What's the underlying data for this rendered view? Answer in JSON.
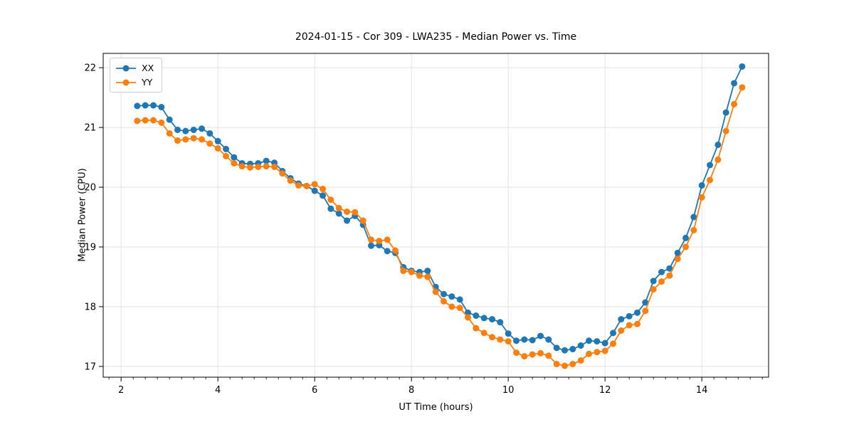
{
  "figure": {
    "title": "2024-01-15 - Cor 309 - LWA235 - Median Power vs. Time",
    "background_color": "#ffffff"
  },
  "chart_data": {
    "type": "line",
    "title": "2024-01-15 - Cor 309 - LWA235 - Median Power vs. Time",
    "xlabel": "UT Time (hours)",
    "ylabel": "Median Power (CPU)",
    "xlim": [
      1.63,
      15.38
    ],
    "ylim": [
      16.82,
      22.24
    ],
    "xticks": [
      2,
      4,
      6,
      8,
      10,
      12,
      14
    ],
    "yticks": [
      17,
      18,
      19,
      20,
      21,
      22
    ],
    "minor_xtick_step": 0.25,
    "grid": true,
    "grid_color": "#e2e2e2",
    "legend_position": "upper left",
    "marker": "circle",
    "x": [
      2.333,
      2.5,
      2.667,
      2.833,
      3,
      3.167,
      3.333,
      3.5,
      3.667,
      3.833,
      4,
      4.167,
      4.333,
      4.5,
      4.667,
      4.833,
      5,
      5.167,
      5.333,
      5.5,
      5.667,
      5.833,
      6,
      6.167,
      6.333,
      6.5,
      6.667,
      6.833,
      7,
      7.167,
      7.333,
      7.5,
      7.667,
      7.833,
      8,
      8.167,
      8.333,
      8.5,
      8.667,
      8.833,
      9,
      9.167,
      9.333,
      9.5,
      9.667,
      9.833,
      10,
      10.167,
      10.333,
      10.5,
      10.667,
      10.833,
      11,
      11.167,
      11.333,
      11.5,
      11.667,
      11.833,
      12,
      12.167,
      12.333,
      12.5,
      12.667,
      12.833,
      13,
      13.167,
      13.333,
      13.5,
      13.667,
      13.833,
      14,
      14.167,
      14.333,
      14.5,
      14.667,
      14.833
    ],
    "series": [
      {
        "name": "XX",
        "color": "#1f77b4",
        "values": [
          21.36,
          21.37,
          21.37,
          21.34,
          21.13,
          20.96,
          20.94,
          20.96,
          20.98,
          20.9,
          20.77,
          20.64,
          20.5,
          20.4,
          20.39,
          20.4,
          20.44,
          20.41,
          20.27,
          20.15,
          20.06,
          20.02,
          19.94,
          19.86,
          19.64,
          19.56,
          19.44,
          19.52,
          19.37,
          19.02,
          19.03,
          18.93,
          18.9,
          18.66,
          18.6,
          18.58,
          18.6,
          18.33,
          18.21,
          18.17,
          18.12,
          17.9,
          17.85,
          17.81,
          17.79,
          17.74,
          17.55,
          17.43,
          17.45,
          17.44,
          17.51,
          17.45,
          17.31,
          17.27,
          17.29,
          17.35,
          17.43,
          17.42,
          17.39,
          17.56,
          17.79,
          17.84,
          17.9,
          18.07,
          18.43,
          18.58,
          18.64,
          18.9,
          19.15,
          19.5,
          20.03,
          20.37,
          20.71,
          21.25,
          21.74,
          22.02
        ]
      },
      {
        "name": "YY",
        "color": "#ff7f0e",
        "values": [
          21.11,
          21.12,
          21.12,
          21.08,
          20.9,
          20.78,
          20.8,
          20.82,
          20.8,
          20.73,
          20.65,
          20.52,
          20.4,
          20.35,
          20.33,
          20.34,
          20.35,
          20.34,
          20.23,
          20.11,
          20.03,
          20.02,
          20.05,
          19.97,
          19.79,
          19.65,
          19.59,
          19.58,
          19.44,
          19.12,
          19.1,
          19.12,
          18.94,
          18.6,
          18.58,
          18.52,
          18.5,
          18.25,
          18.09,
          18.0,
          17.98,
          17.82,
          17.64,
          17.56,
          17.49,
          17.45,
          17.42,
          17.23,
          17.17,
          17.2,
          17.22,
          17.18,
          17.04,
          17.01,
          17.04,
          17.1,
          17.21,
          17.24,
          17.26,
          17.38,
          17.6,
          17.69,
          17.71,
          17.93,
          18.29,
          18.42,
          18.52,
          18.8,
          19.0,
          19.28,
          19.83,
          20.12,
          20.46,
          20.94,
          21.39,
          21.67
        ]
      }
    ]
  }
}
